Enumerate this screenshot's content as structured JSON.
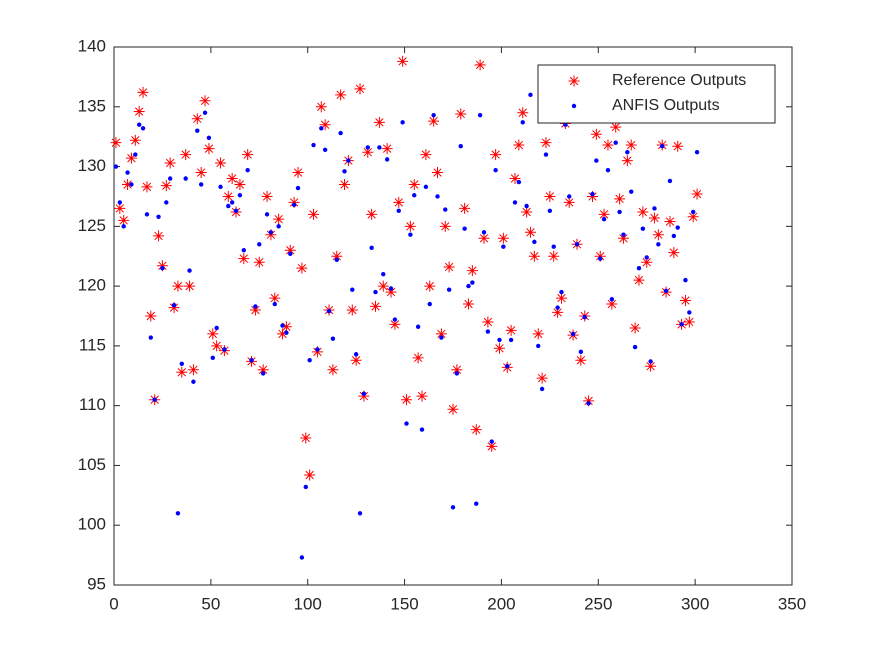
{
  "chart_data": {
    "type": "scatter",
    "legend": "northeast",
    "xlim": [
      0,
      350
    ],
    "xticks": [
      0,
      50,
      100,
      150,
      200,
      250,
      300,
      350
    ],
    "ylim": [
      95,
      140
    ],
    "yticks": [
      95,
      100,
      105,
      110,
      115,
      120,
      125,
      130,
      135,
      140
    ],
    "x": [
      1,
      3,
      5,
      7,
      9,
      11,
      13,
      15,
      17,
      19,
      21,
      23,
      25,
      27,
      29,
      31,
      33,
      35,
      37,
      39,
      41,
      43,
      45,
      47,
      49,
      51,
      53,
      55,
      57,
      59,
      61,
      63,
      65,
      67,
      69,
      71,
      73,
      75,
      77,
      79,
      81,
      83,
      85,
      87,
      89,
      91,
      93,
      95,
      97,
      99,
      101,
      103,
      105,
      107,
      109,
      111,
      113,
      115,
      117,
      119,
      121,
      123,
      125,
      127,
      129,
      131,
      133,
      135,
      137,
      139,
      141,
      143,
      145,
      147,
      149,
      151,
      153,
      155,
      157,
      159,
      161,
      163,
      165,
      167,
      169,
      171,
      173,
      175,
      177,
      179,
      181,
      183,
      185,
      187,
      189,
      191,
      193,
      195,
      197,
      199,
      201,
      203,
      205,
      207,
      209,
      211,
      213,
      215,
      217,
      219,
      221,
      223,
      225,
      227,
      229,
      231,
      233,
      235,
      237,
      239,
      241,
      243,
      245,
      247,
      249,
      251,
      253,
      255,
      257,
      259,
      261,
      263,
      265,
      267,
      269,
      271,
      273,
      275,
      277,
      279,
      281,
      283,
      285,
      287,
      289,
      291,
      293,
      295,
      297,
      299,
      301
    ],
    "series": [
      {
        "name": "Reference Outputs",
        "color": "#ff0000",
        "marker": "asterisk",
        "values": [
          132,
          126.5,
          125.5,
          128.5,
          130.7,
          132.2,
          134.6,
          136.2,
          128.3,
          117.5,
          110.5,
          124.2,
          121.7,
          128.4,
          130.3,
          118.2,
          120,
          112.8,
          131,
          120,
          113,
          134,
          129.5,
          135.5,
          131.5,
          116,
          115,
          130.3,
          114.6,
          127.5,
          129,
          126.2,
          128.5,
          122.3,
          131,
          113.7,
          118,
          122,
          113,
          127.5,
          124.3,
          119,
          125.6,
          116,
          116.6,
          123,
          127,
          129.5,
          121.5,
          107.3,
          104.2,
          126,
          114.5,
          135,
          133.5,
          118,
          113,
          122.5,
          136,
          128.5,
          130.5,
          118,
          113.8,
          136.5,
          110.8,
          131.2,
          126,
          118.3,
          133.7,
          120,
          131.5,
          119.5,
          116.8,
          127,
          138.8,
          110.5,
          125,
          128.5,
          114,
          110.8,
          131,
          120,
          133.8,
          129.5,
          116,
          125,
          121.6,
          109.7,
          113,
          134.4,
          126.5,
          118.5,
          121.3,
          108,
          138.5,
          124,
          117,
          106.6,
          131,
          114.8,
          124,
          113.2,
          116.3,
          129,
          131.8,
          134.5,
          126.2,
          124.5,
          122.5,
          116,
          112.3,
          132,
          127.5,
          122.5,
          117.8,
          119,
          133.6,
          127,
          115.9,
          123.5,
          113.8,
          117.5,
          110.4,
          127.5,
          132.7,
          122.5,
          126,
          131.8,
          118.5,
          133.3,
          127.3,
          124,
          130.5,
          131.8,
          116.5,
          120.5,
          126.2,
          122,
          113.3,
          125.7,
          124.3,
          131.8,
          119.5,
          125.4,
          122.8,
          131.7,
          116.8,
          118.8,
          117,
          125.8,
          127.7
        ]
      },
      {
        "name": "ANFIS Outputs",
        "color": "#0000ff",
        "marker": "dot",
        "values": [
          130,
          127,
          125,
          129.5,
          128.5,
          131,
          133.5,
          133.2,
          126,
          115.7,
          110.5,
          125.8,
          121.5,
          127,
          129,
          118.4,
          101,
          113.5,
          129,
          121.3,
          112,
          133,
          128.5,
          134.5,
          132.4,
          114,
          116.5,
          128.3,
          114.7,
          126.7,
          127,
          126.3,
          127.6,
          123,
          129.7,
          113.8,
          118.3,
          123.5,
          112.7,
          126,
          124.5,
          118.5,
          125,
          116.7,
          116.1,
          122.7,
          126.8,
          128.2,
          97.3,
          103.2,
          113.8,
          131.8,
          114.7,
          133.2,
          131.4,
          117.9,
          115.6,
          122.2,
          132.8,
          129.6,
          130.5,
          119.7,
          114.3,
          101,
          111,
          131.6,
          123.2,
          119.5,
          131.6,
          121,
          130.6,
          119.8,
          117.2,
          126.3,
          133.7,
          108.5,
          124.3,
          127.6,
          116.6,
          108,
          128.3,
          118.5,
          134.3,
          127.5,
          115.7,
          126.4,
          119.7,
          101.5,
          112.7,
          131.7,
          124.8,
          120,
          120.3,
          101.8,
          134.3,
          124.5,
          116.2,
          107,
          129.7,
          115.5,
          123.3,
          113.3,
          115.5,
          127,
          128.7,
          133.7,
          126.7,
          136,
          123.7,
          115,
          111.4,
          131,
          126.3,
          123.3,
          118.2,
          119.5,
          133.5,
          127.5,
          116,
          123.5,
          114.5,
          117.4,
          110.2,
          127.7,
          130.5,
          122.3,
          125.6,
          129.7,
          118.9,
          132,
          126.2,
          124.3,
          131.2,
          127.9,
          114.9,
          121.5,
          124.8,
          122.4,
          113.7,
          126.5,
          123.5,
          131.7,
          119.6,
          128.8,
          124.2,
          124.9,
          116.8,
          120.5,
          117.8,
          126.2,
          131.2
        ]
      }
    ]
  }
}
